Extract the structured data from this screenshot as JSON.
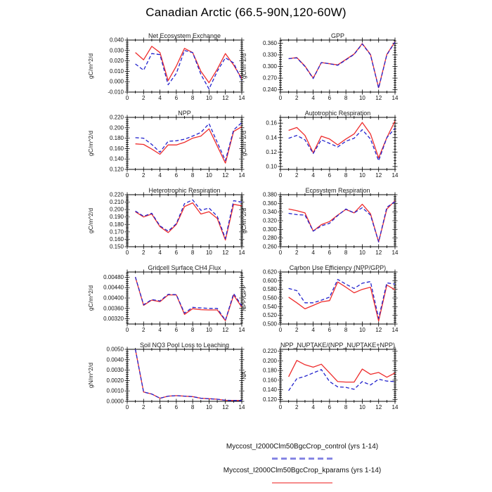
{
  "page": {
    "title": "Canadian Arctic (66.5-90N,120-60W)"
  },
  "colors": {
    "control": "#2323cd",
    "kparams": "#ee2c2c",
    "axis": "#000000"
  },
  "legend": {
    "entries": [
      {
        "label": "Myccost_I2000Clm50BgcCrop_control (yrs 1-14)",
        "series": "control",
        "line_style": "dashed",
        "color": "#2323cd"
      },
      {
        "label": "Myccost_I2000Clm50BgcCrop_kparams (yrs 1-14)",
        "series": "kparams",
        "line_style": "solid",
        "color": "#ee2c2c"
      }
    ]
  },
  "chart_data": [
    {
      "type": "line",
      "title": "Net Ecosystem Exchange",
      "ylabel": "gC/m^2/d",
      "xlim": [
        0,
        14
      ],
      "xticks": [
        0,
        2,
        4,
        6,
        8,
        10,
        12,
        14
      ],
      "x": [
        1,
        2,
        3,
        4,
        5,
        6,
        7,
        8,
        9,
        10,
        11,
        12,
        13,
        14
      ],
      "ylim": [
        -0.01,
        0.04
      ],
      "yticks": [
        -0.01,
        0.0,
        0.01,
        0.02,
        0.03,
        0.04
      ],
      "ytick_labels": [
        "-0.010",
        "0.000",
        "0.010",
        "0.020",
        "0.030",
        "0.040"
      ],
      "series": [
        {
          "name": "kparams",
          "color": "#ee2c2c",
          "dash": false,
          "values": [
            0.028,
            0.021,
            0.034,
            0.028,
            0.001,
            0.015,
            0.032,
            0.028,
            0.01,
            -0.001,
            0.012,
            0.027,
            0.016,
            0.003
          ]
        },
        {
          "name": "control",
          "color": "#2323cd",
          "dash": true,
          "values": [
            0.017,
            0.011,
            0.027,
            0.026,
            -0.003,
            0.008,
            0.03,
            0.028,
            0.007,
            -0.007,
            0.01,
            0.023,
            0.018,
            0.001
          ]
        }
      ]
    },
    {
      "type": "line",
      "title": "GPP",
      "ylabel": "gC/m^2/d",
      "xlim": [
        0,
        14
      ],
      "xticks": [
        0,
        2,
        4,
        6,
        8,
        10,
        12,
        14
      ],
      "x": [
        1,
        2,
        3,
        4,
        5,
        6,
        7,
        8,
        9,
        10,
        11,
        12,
        13,
        14
      ],
      "ylim": [
        0.234,
        0.368
      ],
      "yticks": [
        0.24,
        0.27,
        0.3,
        0.33,
        0.36
      ],
      "ytick_labels": [
        "0.240",
        "0.270",
        "0.300",
        "0.330",
        "0.360"
      ],
      "series": [
        {
          "name": "kparams",
          "color": "#ee2c2c",
          "dash": false,
          "values": [
            0.32,
            0.323,
            0.301,
            0.27,
            0.31,
            0.307,
            0.304,
            0.318,
            0.332,
            0.359,
            0.331,
            0.245,
            0.331,
            0.364
          ]
        },
        {
          "name": "control",
          "color": "#2323cd",
          "dash": true,
          "values": [
            0.32,
            0.322,
            0.3,
            0.269,
            0.31,
            0.307,
            0.303,
            0.317,
            0.331,
            0.358,
            0.33,
            0.244,
            0.33,
            0.363
          ]
        }
      ]
    },
    {
      "type": "line",
      "title": "NPP",
      "ylabel": "gC/m^2/d",
      "xlim": [
        0,
        14
      ],
      "xticks": [
        0,
        2,
        4,
        6,
        8,
        10,
        12,
        14
      ],
      "x": [
        1,
        2,
        3,
        4,
        5,
        6,
        7,
        8,
        9,
        10,
        11,
        12,
        13,
        14
      ],
      "ylim": [
        0.12,
        0.22
      ],
      "yticks": [
        0.12,
        0.14,
        0.16,
        0.18,
        0.2,
        0.22
      ],
      "ytick_labels": [
        "0.120",
        "0.140",
        "0.160",
        "0.180",
        "0.200",
        "0.220"
      ],
      "series": [
        {
          "name": "kparams",
          "color": "#ee2c2c",
          "dash": false,
          "values": [
            0.169,
            0.168,
            0.159,
            0.149,
            0.167,
            0.167,
            0.172,
            0.18,
            0.184,
            0.198,
            0.165,
            0.132,
            0.193,
            0.202
          ]
        },
        {
          "name": "control",
          "color": "#2323cd",
          "dash": true,
          "values": [
            0.181,
            0.18,
            0.168,
            0.153,
            0.174,
            0.175,
            0.178,
            0.184,
            0.191,
            0.208,
            0.172,
            0.137,
            0.196,
            0.21
          ]
        }
      ]
    },
    {
      "type": "line",
      "title": "Autotrophic Respiration",
      "ylabel": "gC/m^2/d",
      "xlim": [
        0,
        14
      ],
      "xticks": [
        0,
        2,
        4,
        6,
        8,
        10,
        12,
        14
      ],
      "x": [
        1,
        2,
        3,
        4,
        5,
        6,
        7,
        8,
        9,
        10,
        11,
        12,
        13,
        14
      ],
      "ylim": [
        0.096,
        0.168
      ],
      "yticks": [
        0.1,
        0.12,
        0.14,
        0.16
      ],
      "ytick_labels": [
        "0.10",
        "0.12",
        "0.14",
        "0.16"
      ],
      "series": [
        {
          "name": "kparams",
          "color": "#ee2c2c",
          "dash": false,
          "values": [
            0.15,
            0.154,
            0.143,
            0.119,
            0.142,
            0.138,
            0.13,
            0.138,
            0.145,
            0.161,
            0.145,
            0.112,
            0.14,
            0.163
          ]
        },
        {
          "name": "control",
          "color": "#2323cd",
          "dash": true,
          "values": [
            0.139,
            0.143,
            0.137,
            0.118,
            0.137,
            0.132,
            0.127,
            0.135,
            0.139,
            0.151,
            0.138,
            0.108,
            0.14,
            0.153
          ]
        }
      ]
    },
    {
      "type": "line",
      "title": "Heterotrophic Respiration",
      "ylabel": "gC/m^2/d",
      "xlim": [
        0,
        14
      ],
      "xticks": [
        0,
        2,
        4,
        6,
        8,
        10,
        12,
        14
      ],
      "x": [
        1,
        2,
        3,
        4,
        5,
        6,
        7,
        8,
        9,
        10,
        11,
        12,
        13,
        14
      ],
      "ylim": [
        0.15,
        0.22
      ],
      "yticks": [
        0.15,
        0.16,
        0.17,
        0.18,
        0.19,
        0.2,
        0.21,
        0.22
      ],
      "ytick_labels": [
        "0.150",
        "0.160",
        "0.170",
        "0.180",
        "0.190",
        "0.200",
        "0.210",
        "0.220"
      ],
      "series": [
        {
          "name": "kparams",
          "color": "#ee2c2c",
          "dash": false,
          "values": [
            0.197,
            0.19,
            0.194,
            0.177,
            0.169,
            0.18,
            0.204,
            0.209,
            0.194,
            0.197,
            0.188,
            0.159,
            0.207,
            0.205
          ]
        },
        {
          "name": "control",
          "color": "#2323cd",
          "dash": true,
          "values": [
            0.198,
            0.191,
            0.195,
            0.178,
            0.171,
            0.181,
            0.208,
            0.213,
            0.199,
            0.202,
            0.191,
            0.161,
            0.212,
            0.21
          ]
        }
      ]
    },
    {
      "type": "line",
      "title": "Ecosystem Respiration",
      "ylabel": "gC/m^2/d",
      "xlim": [
        0,
        14
      ],
      "xticks": [
        0,
        2,
        4,
        6,
        8,
        10,
        12,
        14
      ],
      "x": [
        1,
        2,
        3,
        4,
        5,
        6,
        7,
        8,
        9,
        10,
        11,
        12,
        13,
        14
      ],
      "ylim": [
        0.26,
        0.38
      ],
      "yticks": [
        0.26,
        0.28,
        0.3,
        0.32,
        0.34,
        0.36,
        0.38
      ],
      "ytick_labels": [
        "0.260",
        "0.280",
        "0.300",
        "0.320",
        "0.340",
        "0.360",
        "0.380"
      ],
      "series": [
        {
          "name": "kparams",
          "color": "#ee2c2c",
          "dash": false,
          "values": [
            0.347,
            0.343,
            0.338,
            0.296,
            0.311,
            0.318,
            0.333,
            0.346,
            0.338,
            0.358,
            0.336,
            0.271,
            0.347,
            0.366
          ]
        },
        {
          "name": "control",
          "color": "#2323cd",
          "dash": true,
          "values": [
            0.337,
            0.334,
            0.333,
            0.296,
            0.308,
            0.314,
            0.332,
            0.347,
            0.338,
            0.35,
            0.333,
            0.271,
            0.351,
            0.364
          ]
        }
      ]
    },
    {
      "type": "line",
      "title": "Gridcell Surface CH4 Flux",
      "ylabel": "gC/m^2/d",
      "xlim": [
        0,
        14
      ],
      "xticks": [
        0,
        2,
        4,
        6,
        8,
        10,
        12,
        14
      ],
      "x": [
        1,
        2,
        3,
        4,
        5,
        6,
        7,
        8,
        9,
        10,
        11,
        12,
        13,
        14
      ],
      "ylim": [
        0.003,
        0.005
      ],
      "yticks": [
        0.0032,
        0.0036,
        0.004,
        0.0044,
        0.0048
      ],
      "ytick_labels": [
        "0.00320",
        "0.00360",
        "0.00400",
        "0.00440",
        "0.00480"
      ],
      "series": [
        {
          "name": "kparams",
          "color": "#ee2c2c",
          "dash": false,
          "values": [
            0.0048,
            0.00372,
            0.00392,
            0.00386,
            0.00412,
            0.00412,
            0.00337,
            0.00359,
            0.00355,
            0.00354,
            0.00354,
            0.00313,
            0.00411,
            0.00365
          ]
        },
        {
          "name": "control",
          "color": "#2323cd",
          "dash": true,
          "values": [
            0.00481,
            0.00374,
            0.00394,
            0.00389,
            0.00414,
            0.00413,
            0.00342,
            0.00364,
            0.00362,
            0.0036,
            0.0036,
            0.00315,
            0.00417,
            0.0037
          ]
        }
      ]
    },
    {
      "type": "line",
      "title": "Carbon Use Efficiency (NPP/GPP)",
      "ylabel": "NPP/GPP",
      "xlim": [
        0,
        14
      ],
      "xticks": [
        0,
        2,
        4,
        6,
        8,
        10,
        12,
        14
      ],
      "x": [
        1,
        2,
        3,
        4,
        5,
        6,
        7,
        8,
        9,
        10,
        11,
        12,
        13,
        14
      ],
      "ylim": [
        0.5,
        0.62
      ],
      "yticks": [
        0.5,
        0.52,
        0.54,
        0.56,
        0.58,
        0.6,
        0.62
      ],
      "ytick_labels": [
        "0.500",
        "0.520",
        "0.540",
        "0.560",
        "0.580",
        "0.600",
        "0.620"
      ],
      "series": [
        {
          "name": "kparams",
          "color": "#ee2c2c",
          "dash": false,
          "values": [
            0.562,
            0.549,
            0.535,
            0.543,
            0.551,
            0.554,
            0.597,
            0.585,
            0.572,
            0.58,
            0.585,
            0.507,
            0.59,
            0.579
          ]
        },
        {
          "name": "control",
          "color": "#2323cd",
          "dash": true,
          "values": [
            0.582,
            0.577,
            0.549,
            0.549,
            0.555,
            0.562,
            0.603,
            0.592,
            0.582,
            0.594,
            0.598,
            0.513,
            0.595,
            0.592
          ]
        }
      ]
    },
    {
      "type": "line",
      "title": "Soil NO3 Pool Loss to Leaching",
      "ylabel": "gN/m^2/d",
      "xlim": [
        0,
        14
      ],
      "xticks": [
        0,
        2,
        4,
        6,
        8,
        10,
        12,
        14
      ],
      "x": [
        1,
        2,
        3,
        4,
        5,
        6,
        7,
        8,
        9,
        10,
        11,
        12,
        13,
        14
      ],
      "ylim": [
        0.0,
        0.005
      ],
      "yticks": [
        0.0,
        0.001,
        0.002,
        0.003,
        0.004,
        0.005
      ],
      "ytick_labels": [
        "0.0000",
        "0.0010",
        "0.0020",
        "0.0030",
        "0.0040",
        "0.0050"
      ],
      "series": [
        {
          "name": "kparams",
          "color": "#ee2c2c",
          "dash": false,
          "values": [
            0.005,
            0.0009,
            0.0007,
            0.0003,
            0.0005,
            0.00055,
            0.0005,
            0.00045,
            0.0003,
            0.00025,
            0.0002,
            0.0001,
            8e-05,
            8e-05
          ]
        },
        {
          "name": "control",
          "color": "#2323cd",
          "dash": true,
          "values": [
            0.005,
            0.0009,
            0.0007,
            0.0003,
            0.0005,
            0.00055,
            0.0005,
            0.00045,
            0.0003,
            0.00025,
            0.0002,
            0.0001,
            8e-05,
            8e-05
          ]
        }
      ]
    },
    {
      "type": "line",
      "title": "NPP_NUPTAKE/(NPP_NUPTAKE+NPP)",
      "ylabel": "NA",
      "xlim": [
        0,
        14
      ],
      "xticks": [
        0,
        2,
        4,
        6,
        8,
        10,
        12,
        14
      ],
      "x": [
        1,
        2,
        3,
        4,
        5,
        6,
        7,
        8,
        9,
        10,
        11,
        12,
        13,
        14
      ],
      "ylim": [
        0.116,
        0.224
      ],
      "yticks": [
        0.12,
        0.14,
        0.16,
        0.18,
        0.2,
        0.22
      ],
      "ytick_labels": [
        "0.120",
        "0.140",
        "0.160",
        "0.180",
        "0.200",
        "0.220"
      ],
      "series": [
        {
          "name": "kparams",
          "color": "#ee2c2c",
          "dash": false,
          "values": [
            0.167,
            0.201,
            0.192,
            0.187,
            0.193,
            0.175,
            0.157,
            0.156,
            0.156,
            0.183,
            0.172,
            0.176,
            0.166,
            0.175
          ]
        },
        {
          "name": "control",
          "color": "#2323cd",
          "dash": true,
          "values": [
            0.138,
            0.163,
            0.168,
            0.175,
            0.182,
            0.157,
            0.146,
            0.145,
            0.141,
            0.157,
            0.15,
            0.162,
            0.158,
            0.157
          ]
        }
      ]
    }
  ]
}
